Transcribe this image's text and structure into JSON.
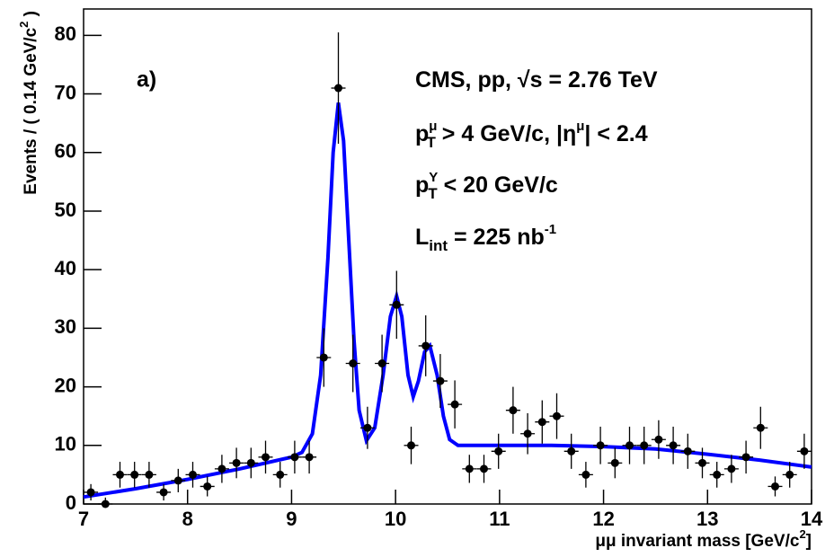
{
  "chart_data": {
    "type": "errorbar",
    "color": "#000000",
    "x": [
      7.07,
      7.21,
      7.35,
      7.49,
      7.63,
      7.77,
      7.91,
      8.05,
      8.19,
      8.33,
      8.47,
      8.61,
      8.75,
      8.89,
      9.03,
      9.17,
      9.31,
      9.45,
      9.59,
      9.73,
      9.87,
      10.01,
      10.15,
      10.29,
      10.43,
      10.57,
      10.71,
      10.85,
      10.99,
      11.13,
      11.27,
      11.41,
      11.55,
      11.69,
      11.83,
      11.97,
      12.11,
      12.25,
      12.39,
      12.53,
      12.67,
      12.81,
      12.95,
      13.09,
      13.23,
      13.37,
      13.51,
      13.65,
      13.79,
      13.93
    ],
    "values": [
      2,
      0,
      5,
      5,
      5,
      2,
      4,
      5,
      3,
      6,
      7,
      7,
      8,
      5,
      8,
      8,
      25,
      71,
      24,
      13,
      24,
      34,
      10,
      27,
      21,
      17,
      6,
      6,
      9,
      16,
      12,
      14,
      15,
      9,
      5,
      10,
      7,
      10,
      10,
      11,
      10,
      9,
      7,
      5,
      6,
      8,
      13,
      3,
      5,
      9
    ],
    "errors": [
      1.4,
      1.1,
      2.2,
      2.2,
      2.2,
      1.4,
      2,
      2.2,
      1.7,
      2.4,
      2.6,
      2.6,
      2.8,
      2.2,
      2.8,
      2.8,
      5,
      9.5,
      4.9,
      3.6,
      4.9,
      5.8,
      3.2,
      5.2,
      4.6,
      4.1,
      2.4,
      2.4,
      3,
      4,
      3.5,
      3.7,
      3.9,
      3,
      2.2,
      3.2,
      2.6,
      3.2,
      3.2,
      3.3,
      3.2,
      3,
      2.6,
      2.2,
      2.4,
      2.8,
      3.6,
      1.7,
      2.2,
      3
    ],
    "fit": {
      "color": "#0000ff",
      "x": [
        7.0,
        7.5,
        8.0,
        8.5,
        9.0,
        9.1,
        9.2,
        9.28,
        9.35,
        9.4,
        9.45,
        9.5,
        9.55,
        9.6,
        9.65,
        9.72,
        9.8,
        9.88,
        9.95,
        10.01,
        10.06,
        10.12,
        10.17,
        10.22,
        10.28,
        10.33,
        10.4,
        10.46,
        10.52,
        10.6,
        11.0,
        11.5,
        12.0,
        12.5,
        13.0,
        13.5,
        14.0
      ],
      "values": [
        1.2,
        2.6,
        4.2,
        6.0,
        8.0,
        8.8,
        12,
        22,
        42,
        60,
        68.5,
        62,
        45,
        28,
        16,
        10.8,
        13,
        22,
        32,
        35.5,
        32,
        22,
        18.3,
        21,
        26,
        27,
        22,
        15,
        11,
        10,
        10,
        10,
        9.8,
        9.4,
        8.5,
        7.5,
        6.3
      ]
    },
    "xlim": [
      7,
      14
    ],
    "ylim": [
      0,
      84.5
    ],
    "xticks": [
      7,
      8,
      9,
      10,
      11,
      12,
      13,
      14
    ],
    "yticks": [
      0,
      10,
      20,
      30,
      40,
      50,
      60,
      70,
      80
    ],
    "xlabel": [
      "μμ invariant mass [GeV/c",
      "2",
      "]"
    ],
    "ylabel": [
      "Events / ( 0.14 GeV/c",
      "2",
      " )"
    ],
    "panel_label": "a)",
    "annotations": [
      [
        "CMS, pp, √s = 2.76 TeV"
      ],
      [
        "p",
        "μ",
        "T",
        " > 4 GeV/c, |η",
        "μ",
        "| < 2.4"
      ],
      [
        "p",
        "Υ",
        "T",
        " < 20 GeV/c"
      ],
      [
        "L",
        "int",
        " = 225 nb",
        "-1"
      ]
    ]
  }
}
